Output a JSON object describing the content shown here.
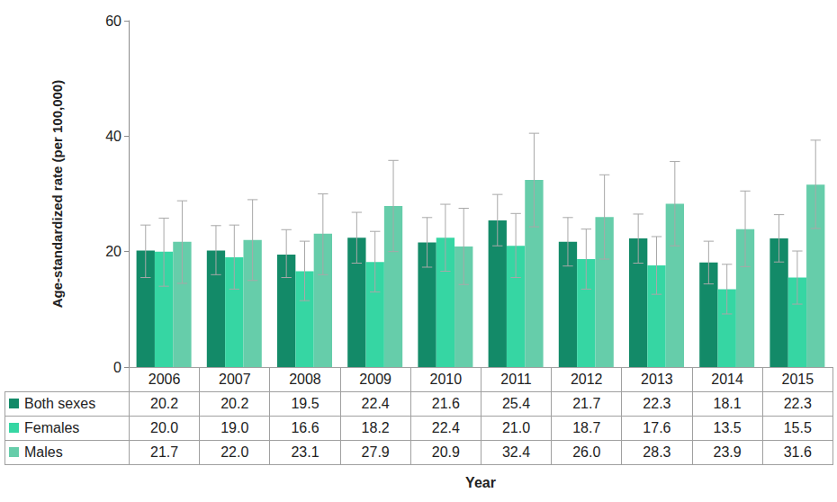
{
  "chart_data": {
    "type": "bar",
    "x_label": "Year",
    "y_label": "Age-standardized rate (per 100,000)",
    "categories": [
      "2006",
      "2007",
      "2008",
      "2009",
      "2010",
      "2011",
      "2012",
      "2013",
      "2014",
      "2015"
    ],
    "ylim": [
      0,
      60
    ],
    "yticks": [
      0,
      20,
      40,
      60
    ],
    "grid": false,
    "data_labels": false,
    "series": [
      {
        "name": "Both sexes",
        "color": "#138a68",
        "values": [
          20.2,
          20.2,
          19.5,
          22.4,
          21.6,
          25.4,
          21.7,
          22.3,
          18.1,
          22.3
        ],
        "value_labels": [
          "20.2",
          "20.2",
          "19.5",
          "22.4",
          "21.6",
          "25.4",
          "21.7",
          "22.3",
          "18.1",
          "22.3"
        ],
        "lower": [
          15.5,
          16.0,
          15.5,
          18.0,
          17.3,
          21.0,
          17.5,
          18.0,
          14.4,
          18.2
        ],
        "upper": [
          24.6,
          24.5,
          23.8,
          26.8,
          25.9,
          29.9,
          25.9,
          26.5,
          21.8,
          26.4
        ]
      },
      {
        "name": "Females",
        "color": "#36d6a3",
        "values": [
          20.0,
          19.0,
          16.6,
          18.2,
          22.4,
          21.0,
          18.7,
          17.6,
          13.5,
          15.5
        ],
        "value_labels": [
          "20.0",
          "19.0",
          "16.6",
          "18.2",
          "22.4",
          "21.0",
          "18.7",
          "17.6",
          "13.5",
          "15.5"
        ],
        "lower": [
          14.0,
          13.5,
          11.5,
          13.0,
          16.6,
          15.5,
          13.5,
          12.6,
          9.2,
          10.9
        ],
        "upper": [
          25.8,
          24.6,
          21.8,
          23.5,
          28.2,
          26.6,
          23.9,
          22.6,
          17.8,
          20.1
        ]
      },
      {
        "name": "Males",
        "color": "#66cdaa",
        "values": [
          21.7,
          22.0,
          23.1,
          27.9,
          20.9,
          32.4,
          26.0,
          28.3,
          23.9,
          31.6
        ],
        "value_labels": [
          "21.7",
          "22.0",
          "23.1",
          "27.9",
          "20.9",
          "32.4",
          "26.0",
          "28.3",
          "23.9",
          "31.6"
        ],
        "lower": [
          14.5,
          15.0,
          16.0,
          20.0,
          14.3,
          24.3,
          18.7,
          21.0,
          17.4,
          24.0
        ],
        "upper": [
          28.8,
          29.0,
          30.0,
          35.8,
          27.5,
          40.5,
          33.3,
          35.6,
          30.5,
          39.3
        ]
      }
    ]
  }
}
